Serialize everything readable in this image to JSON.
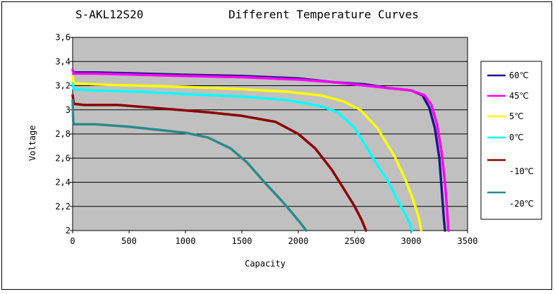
{
  "chart_data": {
    "type": "line",
    "title": "Different Temperature Curves",
    "model": "S-AKL12S20",
    "xlabel": "Capacity",
    "ylabel": "Voltage",
    "xlim": [
      0,
      3500
    ],
    "ylim": [
      2,
      3.6
    ],
    "xticks": [
      "0",
      "500",
      "1000",
      "1500",
      "2000",
      "2500",
      "3000",
      "3500"
    ],
    "yticks": [
      "2",
      "2,2",
      "2,4",
      "2,6",
      "2,8",
      "3",
      "3,2",
      "3,4",
      "3,6"
    ],
    "xtick_values": [
      0,
      500,
      1000,
      1500,
      2000,
      2500,
      3000,
      3500
    ],
    "ytick_values": [
      2,
      2.2,
      2.4,
      2.6,
      2.8,
      3,
      3.2,
      3.4,
      3.6
    ],
    "grid": "horizontal",
    "plot_background": "#c0c0c0",
    "legend_position": "right",
    "series": [
      {
        "name": "60℃",
        "color": "#1a1a80",
        "points": [
          [
            0,
            3.33
          ],
          [
            10,
            3.31
          ],
          [
            200,
            3.31
          ],
          [
            600,
            3.3
          ],
          [
            1000,
            3.29
          ],
          [
            1500,
            3.28
          ],
          [
            2000,
            3.26
          ],
          [
            2300,
            3.23
          ],
          [
            2600,
            3.21
          ],
          [
            2800,
            3.18
          ],
          [
            3000,
            3.16
          ],
          [
            3100,
            3.12
          ],
          [
            3160,
            3.02
          ],
          [
            3210,
            2.85
          ],
          [
            3250,
            2.6
          ],
          [
            3270,
            2.35
          ],
          [
            3290,
            2.1
          ],
          [
            3300,
            2.0
          ]
        ]
      },
      {
        "name": "45℃",
        "color": "#ff00ff",
        "points": [
          [
            0,
            3.33
          ],
          [
            10,
            3.3
          ],
          [
            200,
            3.3
          ],
          [
            600,
            3.29
          ],
          [
            1000,
            3.28
          ],
          [
            1500,
            3.27
          ],
          [
            2000,
            3.25
          ],
          [
            2300,
            3.23
          ],
          [
            2600,
            3.2
          ],
          [
            2800,
            3.18
          ],
          [
            3000,
            3.16
          ],
          [
            3120,
            3.12
          ],
          [
            3180,
            3.04
          ],
          [
            3230,
            2.88
          ],
          [
            3270,
            2.65
          ],
          [
            3300,
            2.4
          ],
          [
            3320,
            2.15
          ],
          [
            3330,
            2.0
          ]
        ]
      },
      {
        "name": "5℃",
        "color": "#ffff00",
        "points": [
          [
            0,
            3.28
          ],
          [
            10,
            3.22
          ],
          [
            200,
            3.21
          ],
          [
            600,
            3.2
          ],
          [
            1000,
            3.19
          ],
          [
            1500,
            3.17
          ],
          [
            1900,
            3.15
          ],
          [
            2200,
            3.12
          ],
          [
            2400,
            3.07
          ],
          [
            2550,
            3.0
          ],
          [
            2700,
            2.85
          ],
          [
            2850,
            2.62
          ],
          [
            2950,
            2.42
          ],
          [
            3020,
            2.25
          ],
          [
            3070,
            2.1
          ],
          [
            3090,
            2.0
          ]
        ]
      },
      {
        "name": "0℃",
        "color": "#00ffff",
        "points": [
          [
            0,
            3.22
          ],
          [
            10,
            3.17
          ],
          [
            200,
            3.16
          ],
          [
            600,
            3.15
          ],
          [
            1000,
            3.13
          ],
          [
            1500,
            3.11
          ],
          [
            1900,
            3.08
          ],
          [
            2200,
            3.03
          ],
          [
            2350,
            2.98
          ],
          [
            2500,
            2.85
          ],
          [
            2650,
            2.62
          ],
          [
            2800,
            2.4
          ],
          [
            2900,
            2.22
          ],
          [
            2980,
            2.08
          ],
          [
            3010,
            2.0
          ]
        ]
      },
      {
        "name": "-10℃",
        "color": "#8b0000",
        "points": [
          [
            0,
            3.12
          ],
          [
            10,
            3.05
          ],
          [
            100,
            3.04
          ],
          [
            400,
            3.04
          ],
          [
            800,
            3.01
          ],
          [
            1200,
            2.98
          ],
          [
            1500,
            2.95
          ],
          [
            1800,
            2.9
          ],
          [
            2000,
            2.8
          ],
          [
            2150,
            2.68
          ],
          [
            2300,
            2.5
          ],
          [
            2400,
            2.35
          ],
          [
            2500,
            2.2
          ],
          [
            2560,
            2.09
          ],
          [
            2600,
            2.0
          ]
        ]
      },
      {
        "name": "-20℃",
        "color": "#2a8a8a",
        "points": [
          [
            0,
            3.08
          ],
          [
            5,
            2.9
          ],
          [
            15,
            2.88
          ],
          [
            200,
            2.88
          ],
          [
            500,
            2.86
          ],
          [
            800,
            2.83
          ],
          [
            1000,
            2.81
          ],
          [
            1200,
            2.77
          ],
          [
            1400,
            2.68
          ],
          [
            1550,
            2.56
          ],
          [
            1700,
            2.4
          ],
          [
            1850,
            2.25
          ],
          [
            1950,
            2.14
          ],
          [
            2030,
            2.05
          ],
          [
            2070,
            2.0
          ]
        ]
      }
    ]
  }
}
